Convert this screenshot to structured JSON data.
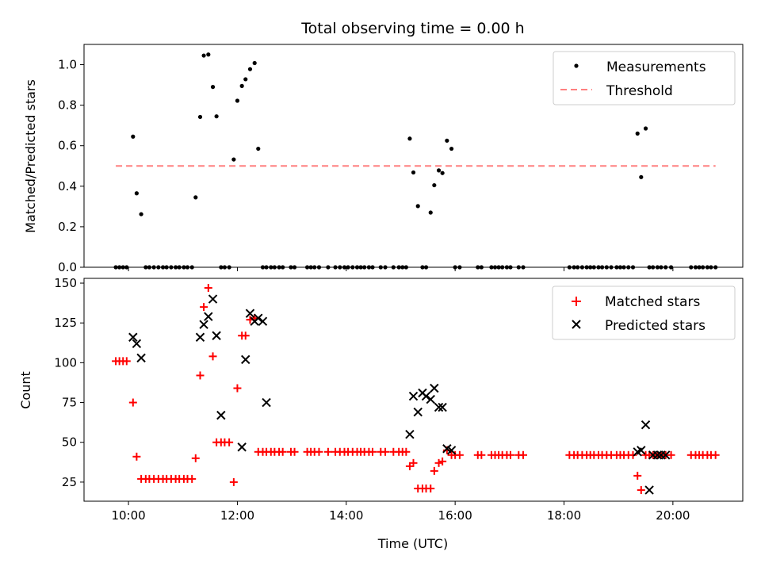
{
  "chart_data": [
    {
      "type": "scatter",
      "title": "Total observing time = 0.00 h",
      "xlabel": "",
      "ylabel": "Matched/Predicted stars",
      "xlim": [
        "09:11",
        "21:17"
      ],
      "ylim": [
        0,
        1.1
      ],
      "yticks": [
        0.0,
        0.2,
        0.4,
        0.6,
        0.8,
        1.0
      ],
      "ytick_labels": [
        "0.0",
        "0.2",
        "0.4",
        "0.6",
        "0.8",
        "1.0"
      ],
      "legend_position": "top-right",
      "grid": false,
      "series": [
        {
          "name": "Measurements",
          "kind": "scatter",
          "marker": "dot",
          "color": "#000000",
          "x": [
            "09:46",
            "09:50",
            "09:54",
            "09:58",
            "10:05",
            "10:09",
            "10:14",
            "10:19",
            "10:23",
            "10:28",
            "10:33",
            "10:38",
            "10:42",
            "10:47",
            "10:52",
            "10:56",
            "11:01",
            "11:05",
            "11:10",
            "11:14",
            "11:19",
            "11:23",
            "11:28",
            "11:33",
            "11:37",
            "11:42",
            "11:46",
            "11:51",
            "11:56",
            "12:00",
            "12:05",
            "12:09",
            "12:14",
            "12:19",
            "12:23",
            "12:28",
            "12:32",
            "12:37",
            "12:41",
            "12:46",
            "12:50",
            "12:59",
            "13:03",
            "13:17",
            "13:21",
            "13:25",
            "13:30",
            "13:40",
            "13:48",
            "13:53",
            "13:58",
            "14:02",
            "14:07",
            "14:12",
            "14:16",
            "14:20",
            "14:25",
            "14:29",
            "14:38",
            "14:43",
            "14:52",
            "14:58",
            "15:02",
            "15:06",
            "15:10",
            "15:14",
            "15:19",
            "15:24",
            "15:28",
            "15:33",
            "15:37",
            "15:42",
            "15:46",
            "15:51",
            "15:56",
            "16:00",
            "16:05",
            "16:25",
            "16:29",
            "16:40",
            "16:44",
            "16:48",
            "16:52",
            "16:57",
            "17:01",
            "17:10",
            "17:15",
            "18:06",
            "18:11",
            "18:15",
            "18:20",
            "18:25",
            "18:29",
            "18:33",
            "18:38",
            "18:42",
            "18:47",
            "18:52",
            "18:58",
            "19:02",
            "19:06",
            "19:11",
            "19:16",
            "19:21",
            "19:25",
            "19:30",
            "19:34",
            "19:38",
            "19:43",
            "19:47",
            "19:52",
            "19:58",
            "20:20",
            "20:25",
            "20:29",
            "20:33",
            "20:38",
            "20:42",
            "20:47"
          ],
          "y": [
            0,
            0,
            0,
            0,
            0.645,
            0.365,
            0.262,
            0,
            0,
            0,
            0,
            0,
            0,
            0,
            0,
            0,
            0,
            0,
            0,
            0.345,
            0.742,
            1.045,
            1.05,
            0.89,
            0.745,
            0,
            0,
            0,
            0.532,
            0.822,
            0.895,
            0.928,
            0.978,
            1.008,
            0.585,
            0,
            0,
            0,
            0,
            0,
            0,
            0,
            0,
            0,
            0,
            0,
            0,
            0,
            0,
            0,
            0,
            0,
            0,
            0,
            0,
            0,
            0,
            0,
            0,
            0,
            0,
            0,
            0,
            0,
            0.635,
            0.468,
            0.302,
            0,
            0,
            0.27,
            0.405,
            0.478,
            0.465,
            0.625,
            0.585,
            0,
            0,
            0,
            0,
            0,
            0,
            0,
            0,
            0,
            0,
            0,
            0,
            0,
            0,
            0,
            0,
            0,
            0,
            0,
            0,
            0,
            0,
            0,
            0,
            0,
            0,
            0,
            0,
            0.66,
            0.445,
            0.685,
            0,
            0,
            0,
            0,
            0,
            0,
            0,
            0,
            0,
            0,
            0,
            0,
            0
          ]
        },
        {
          "name": "Threshold",
          "kind": "line",
          "dash": "dashed",
          "color": "#ff8080",
          "x": [
            "09:46",
            "20:47"
          ],
          "y": [
            0.5,
            0.5
          ]
        }
      ]
    },
    {
      "type": "scatter",
      "title": "",
      "xlabel": "Time (UTC)",
      "ylabel": "Count",
      "xlim": [
        "09:11",
        "21:17"
      ],
      "ylim": [
        13,
        153
      ],
      "xticks": [
        "10:00",
        "12:00",
        "14:00",
        "16:00",
        "18:00",
        "20:00"
      ],
      "xtick_labels": [
        "10:00",
        "12:00",
        "14:00",
        "16:00",
        "18:00",
        "20:00"
      ],
      "yticks": [
        25,
        50,
        75,
        100,
        125,
        150
      ],
      "ytick_labels": [
        "25",
        "50",
        "75",
        "100",
        "125",
        "150"
      ],
      "legend_position": "top-right",
      "grid": false,
      "series": [
        {
          "name": "Matched stars",
          "kind": "scatter",
          "marker": "plus",
          "color": "#ff0000",
          "x": [
            "09:46",
            "09:50",
            "09:54",
            "09:58",
            "10:05",
            "10:09",
            "10:14",
            "10:19",
            "10:23",
            "10:28",
            "10:33",
            "10:38",
            "10:42",
            "10:47",
            "10:52",
            "10:56",
            "11:01",
            "11:05",
            "11:10",
            "11:14",
            "11:19",
            "11:23",
            "11:28",
            "11:33",
            "11:37",
            "11:42",
            "11:46",
            "11:51",
            "11:56",
            "12:00",
            "12:05",
            "12:09",
            "12:14",
            "12:19",
            "12:23",
            "12:28",
            "12:32",
            "12:37",
            "12:41",
            "12:46",
            "12:50",
            "12:59",
            "13:03",
            "13:17",
            "13:21",
            "13:25",
            "13:30",
            "13:40",
            "13:48",
            "13:53",
            "13:58",
            "14:02",
            "14:07",
            "14:12",
            "14:16",
            "14:20",
            "14:25",
            "14:29",
            "14:38",
            "14:43",
            "14:52",
            "14:58",
            "15:02",
            "15:06",
            "15:10",
            "15:14",
            "15:19",
            "15:24",
            "15:28",
            "15:33",
            "15:37",
            "15:42",
            "15:46",
            "15:51",
            "15:56",
            "16:00",
            "16:05",
            "16:25",
            "16:29",
            "16:40",
            "16:44",
            "16:48",
            "16:52",
            "16:57",
            "17:01",
            "17:10",
            "17:15",
            "18:06",
            "18:11",
            "18:15",
            "18:20",
            "18:25",
            "18:29",
            "18:33",
            "18:38",
            "18:42",
            "18:47",
            "18:52",
            "18:58",
            "19:02",
            "19:06",
            "19:11",
            "19:16",
            "19:21",
            "19:25",
            "19:30",
            "19:34",
            "19:38",
            "19:43",
            "19:47",
            "19:52",
            "19:58",
            "20:20",
            "20:25",
            "20:29",
            "20:33",
            "20:38",
            "20:42",
            "20:47"
          ],
          "y": [
            101,
            101,
            101,
            101,
            75,
            41,
            27,
            27,
            27,
            27,
            27,
            27,
            27,
            27,
            27,
            27,
            27,
            27,
            27,
            40,
            92,
            135,
            147,
            104,
            50,
            50,
            50,
            50,
            25,
            84,
            117,
            117,
            127,
            128,
            44,
            44,
            44,
            44,
            44,
            44,
            44,
            44,
            44,
            44,
            44,
            44,
            44,
            44,
            44,
            44,
            44,
            44,
            44,
            44,
            44,
            44,
            44,
            44,
            44,
            44,
            44,
            44,
            44,
            44,
            35,
            37,
            21,
            21,
            21,
            21,
            32,
            37,
            38,
            45,
            42,
            42,
            42,
            42,
            42,
            42,
            42,
            42,
            42,
            42,
            42,
            42,
            42,
            42,
            42,
            42,
            42,
            42,
            42,
            42,
            42,
            42,
            42,
            42,
            42,
            42,
            42,
            42,
            42,
            29,
            20,
            42,
            42,
            42,
            42,
            42,
            42,
            42,
            42,
            42,
            42,
            42,
            42,
            42,
            42
          ]
        },
        {
          "name": "Predicted stars",
          "kind": "scatter",
          "marker": "x",
          "color": "#000000",
          "x": [
            "10:05",
            "10:09",
            "10:14",
            "11:19",
            "11:23",
            "11:28",
            "11:33",
            "11:37",
            "11:42",
            "12:05",
            "12:09",
            "12:14",
            "12:19",
            "12:23",
            "12:28",
            "12:32",
            "15:10",
            "15:14",
            "15:19",
            "15:24",
            "15:28",
            "15:33",
            "15:37",
            "15:42",
            "15:46",
            "15:51",
            "15:56",
            "19:21",
            "19:25",
            "19:30",
            "19:34",
            "19:38",
            "19:43",
            "19:47",
            "19:52"
          ],
          "y": [
            116,
            112,
            103,
            116,
            124,
            129,
            140,
            117,
            67,
            47,
            102,
            131,
            126,
            128,
            126,
            75,
            55,
            79,
            69,
            81,
            79,
            77,
            84,
            72,
            72,
            46,
            45,
            44,
            45,
            61,
            20,
            42,
            42,
            42,
            42
          ]
        }
      ]
    }
  ]
}
